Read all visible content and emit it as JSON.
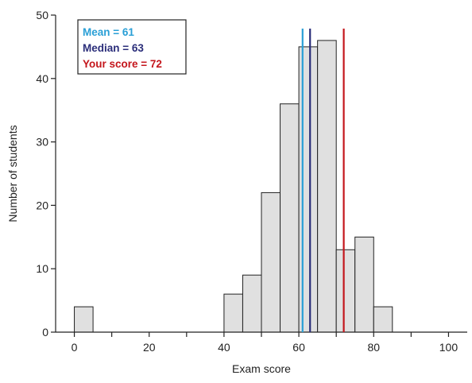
{
  "chart_data": {
    "type": "bar",
    "subtype": "histogram",
    "xlabel": "Exam score",
    "ylabel": "Number of students",
    "xlim": [
      -5,
      105
    ],
    "ylim": [
      0,
      50
    ],
    "x_ticks": [
      0,
      10,
      20,
      30,
      40,
      50,
      60,
      70,
      80,
      90,
      100
    ],
    "x_tick_labels": [
      "0",
      "",
      "20",
      "",
      "40",
      "",
      "60",
      "",
      "80",
      "",
      "100"
    ],
    "y_ticks": [
      0,
      10,
      20,
      30,
      40,
      50
    ],
    "y_tick_labels": [
      "0",
      "10",
      "20",
      "30",
      "40",
      "50"
    ],
    "bin_width": 5,
    "bins": [
      {
        "start": 0,
        "value": 4
      },
      {
        "start": 40,
        "value": 6
      },
      {
        "start": 45,
        "value": 9
      },
      {
        "start": 50,
        "value": 22
      },
      {
        "start": 55,
        "value": 36
      },
      {
        "start": 60,
        "value": 45
      },
      {
        "start": 65,
        "value": 46
      },
      {
        "start": 70,
        "value": 13
      },
      {
        "start": 75,
        "value": 15
      },
      {
        "start": 80,
        "value": 4
      }
    ],
    "bar_fill": "#e0e0e0",
    "bar_stroke": "#222222",
    "reference_lines": [
      {
        "key": "mean",
        "x": 61,
        "color": "#2a9fd6",
        "label": "Mean = 61"
      },
      {
        "key": "median",
        "x": 63,
        "color": "#2b2e7a",
        "label": "Median = 63"
      },
      {
        "key": "your-score",
        "x": 72,
        "color": "#c4161c",
        "label": "Your score = 72"
      }
    ],
    "legend_position": "top-left",
    "grid": false
  }
}
